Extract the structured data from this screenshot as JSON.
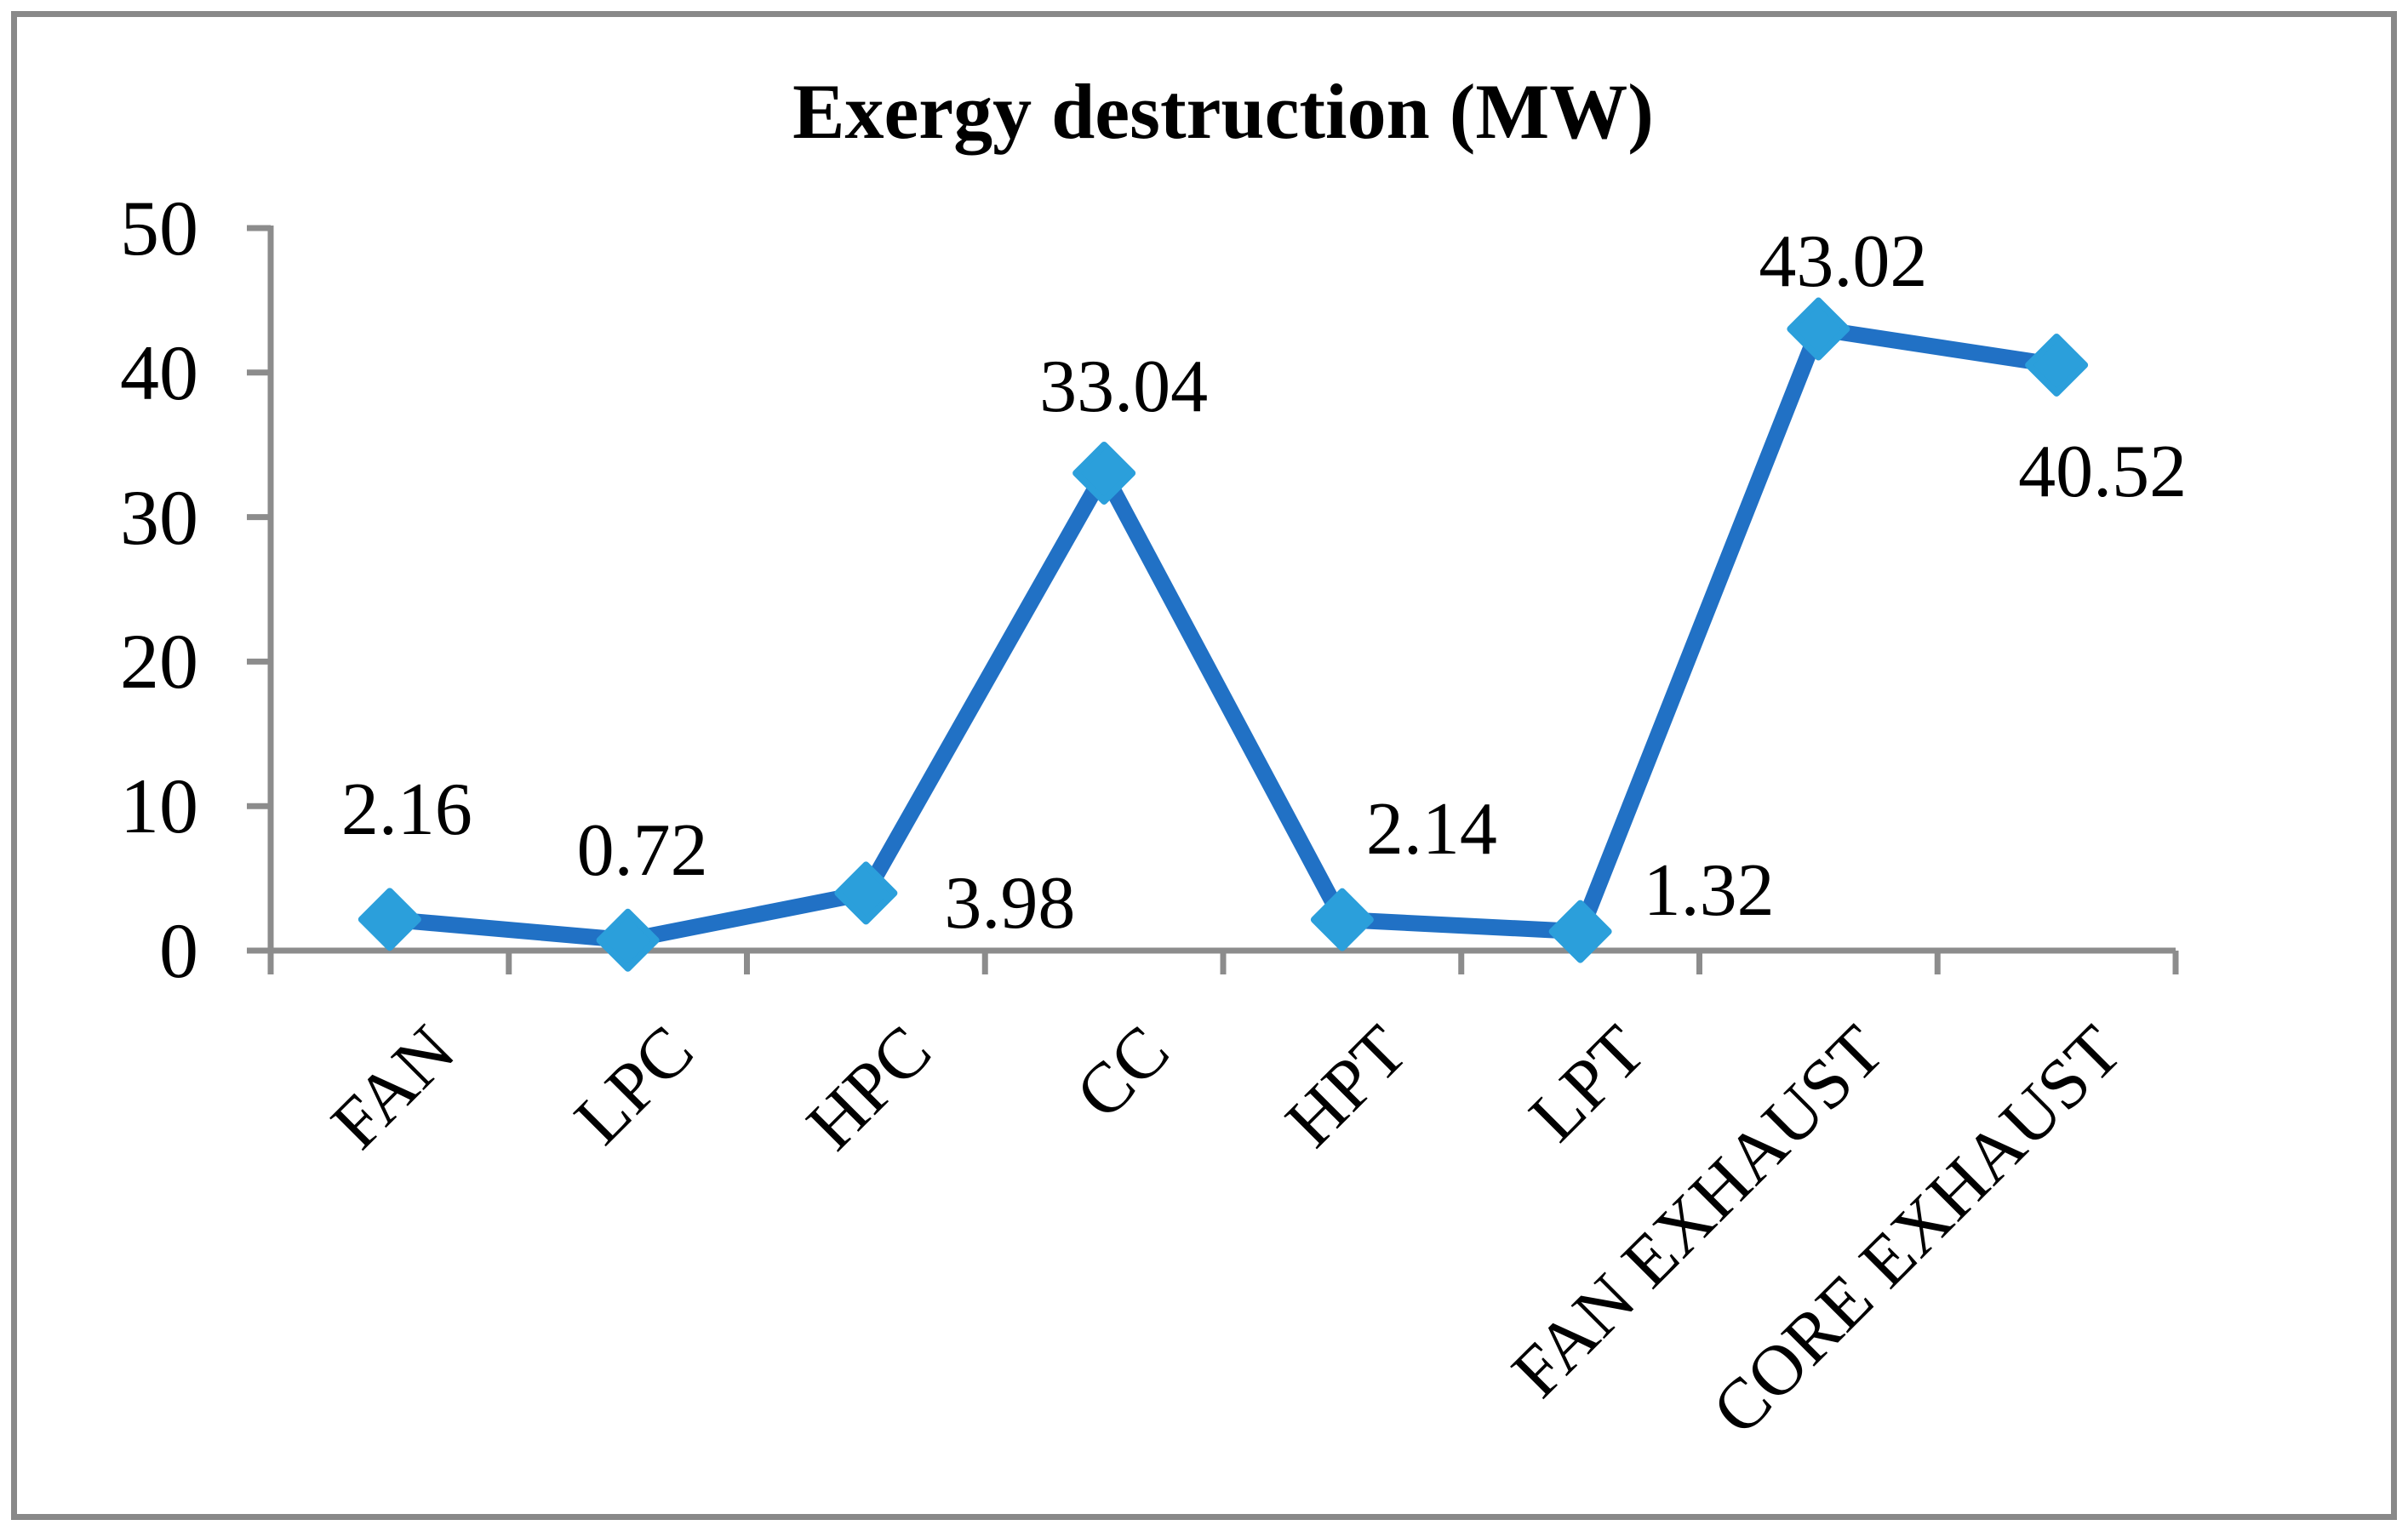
{
  "figure": {
    "border_color": "#898989",
    "background_color": "#FFFFFF"
  },
  "chart_data": {
    "type": "line",
    "title": "Exergy destruction (MW)",
    "categories": [
      "FAN",
      "LPC",
      "HPC",
      "CC",
      "HPT",
      "LPT",
      "FAN EXHAUST",
      "CORE EXHAUST"
    ],
    "values": [
      2.16,
      0.72,
      3.98,
      33.04,
      2.14,
      1.32,
      43.02,
      40.52
    ],
    "value_labels": [
      "2.16",
      "0.72",
      "3.98",
      "33.04",
      "2.14",
      "1.32",
      "43.02",
      "40.52"
    ],
    "y_tick_labels": [
      "0",
      "10",
      "20",
      "30",
      "40",
      "50"
    ],
    "ylim": [
      0,
      50
    ],
    "y_tick_step": 10,
    "xlabel": "",
    "ylabel": "",
    "grid": false,
    "legend": "none",
    "x_label_rotation_deg": 45,
    "marker_shape": "diamond",
    "line_color": "#2171C5",
    "marker_color": "#2B9FDB",
    "axis_color": "#8C8C8C",
    "text_color": "#000000"
  }
}
